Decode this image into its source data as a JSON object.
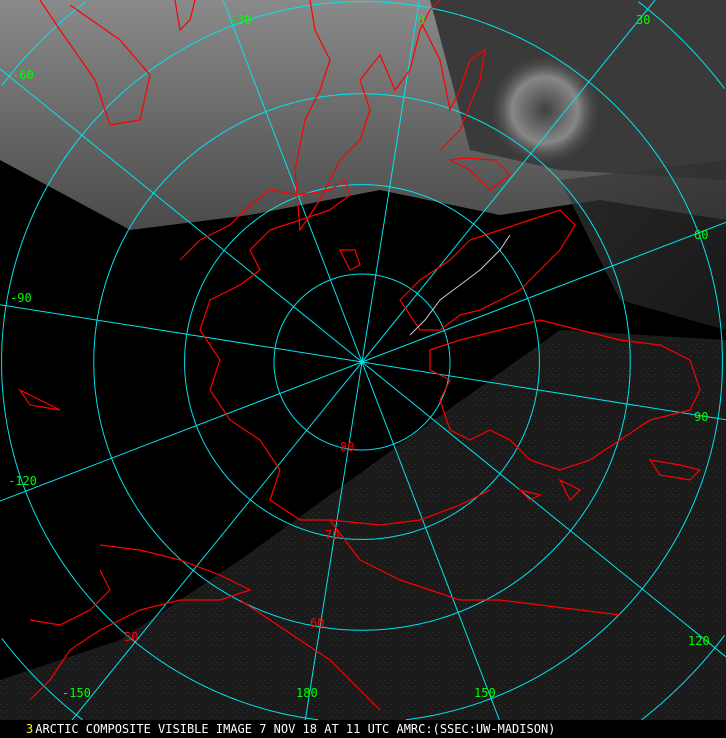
{
  "map": {
    "projection": "polar stereographic (north pole)",
    "longitude_labels": [
      {
        "lon": -30,
        "text": "-30"
      },
      {
        "lon": 0,
        "text": "0"
      },
      {
        "lon": 30,
        "text": "30"
      },
      {
        "lon": -60,
        "text": "-60"
      },
      {
        "lon": 60,
        "text": "60"
      },
      {
        "lon": -90,
        "text": "-90"
      },
      {
        "lon": 90,
        "text": "90"
      },
      {
        "lon": -120,
        "text": "-120"
      },
      {
        "lon": 120,
        "text": "120"
      },
      {
        "lon": -150,
        "text": "-150"
      },
      {
        "lon": 150,
        "text": "150"
      },
      {
        "lon": 180,
        "text": "180"
      }
    ],
    "latitude_labels": [
      {
        "lat": 80,
        "text": "80"
      },
      {
        "lat": 70,
        "text": "70"
      },
      {
        "lat": 60,
        "text": "60"
      },
      {
        "lat": 50,
        "text": "50"
      }
    ],
    "colors": {
      "grid": "#00e5ee",
      "coastline": "#ff0000",
      "lon_label": "#00ff00",
      "lat_label": "#ff0000",
      "frame_number": "#ffff00"
    }
  },
  "caption": {
    "frame_number": "3",
    "text": "ARCTIC COMPOSITE VISIBLE IMAGE 7 NOV 18 AT 11 UTC AMRC:(SSEC:UW-MADISON)"
  }
}
